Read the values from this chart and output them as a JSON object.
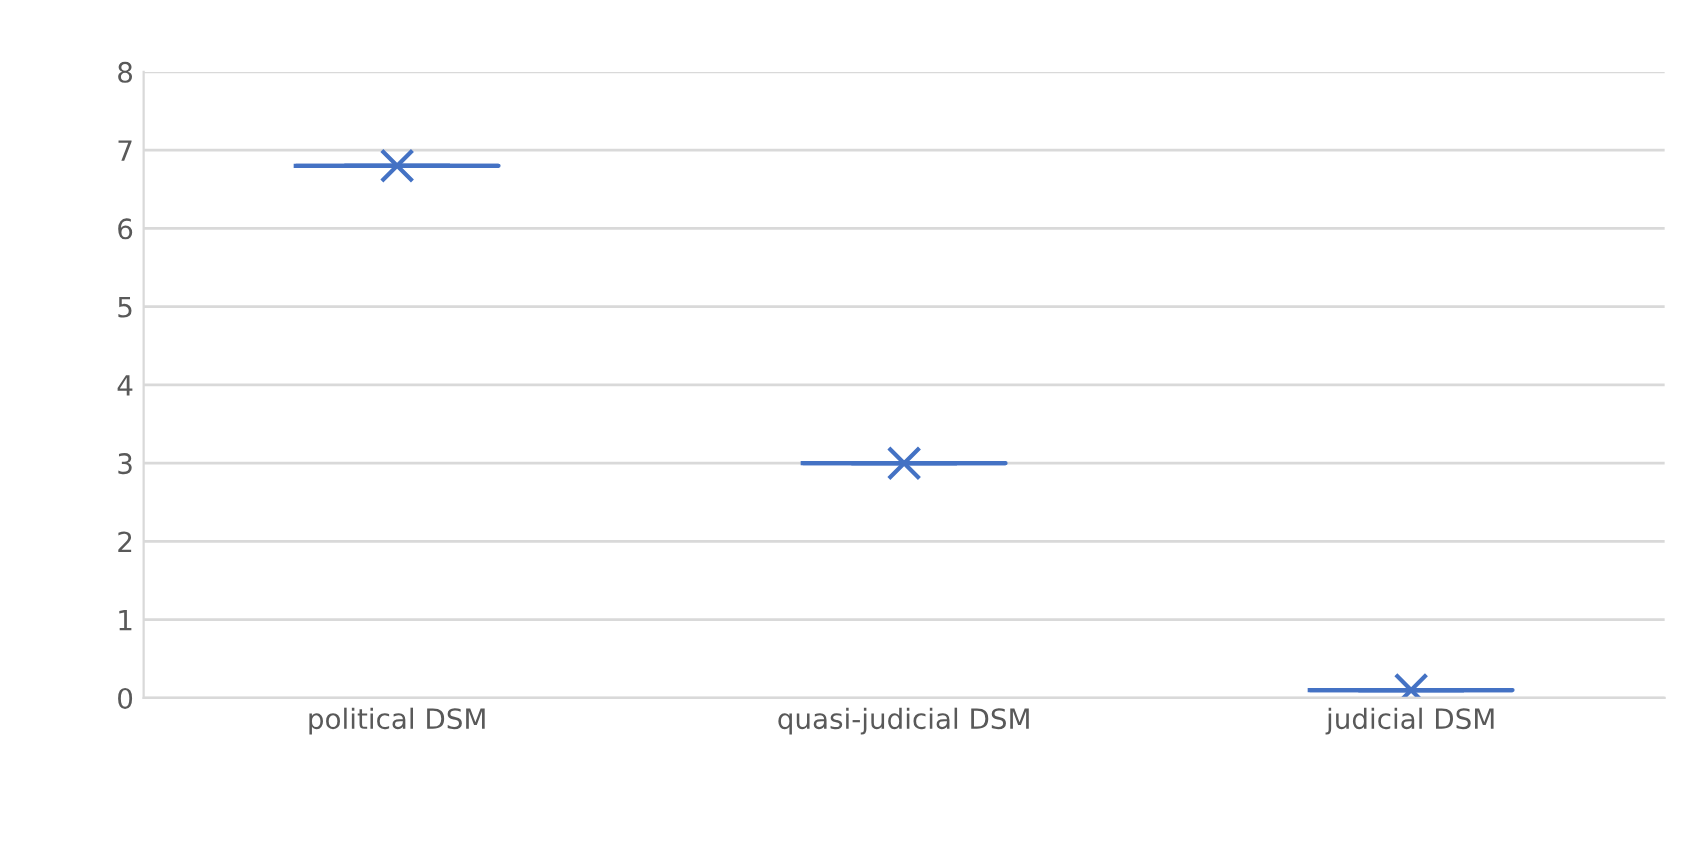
{
  "chart_data": {
    "type": "box",
    "categories": [
      "political DSM",
      "quasi-judicial DSM",
      "judicial DSM"
    ],
    "boxes": [
      {
        "low": 6.8,
        "q1": 6.8,
        "median": 6.8,
        "q3": 6.8,
        "high": 6.8,
        "mean": 6.8
      },
      {
        "low": 3.0,
        "q1": 3.0,
        "median": 3.0,
        "q3": 3.0,
        "high": 3.0,
        "mean": 3.0
      },
      {
        "low": 0.1,
        "q1": 0.1,
        "median": 0.1,
        "q3": 0.1,
        "high": 0.1,
        "mean": 0.1
      }
    ],
    "color": "#4472c4",
    "ylim": [
      0,
      8
    ],
    "yticks": [
      0,
      1,
      2,
      3,
      4,
      5,
      6,
      7,
      8
    ],
    "grid": "y",
    "marker": "cross"
  }
}
